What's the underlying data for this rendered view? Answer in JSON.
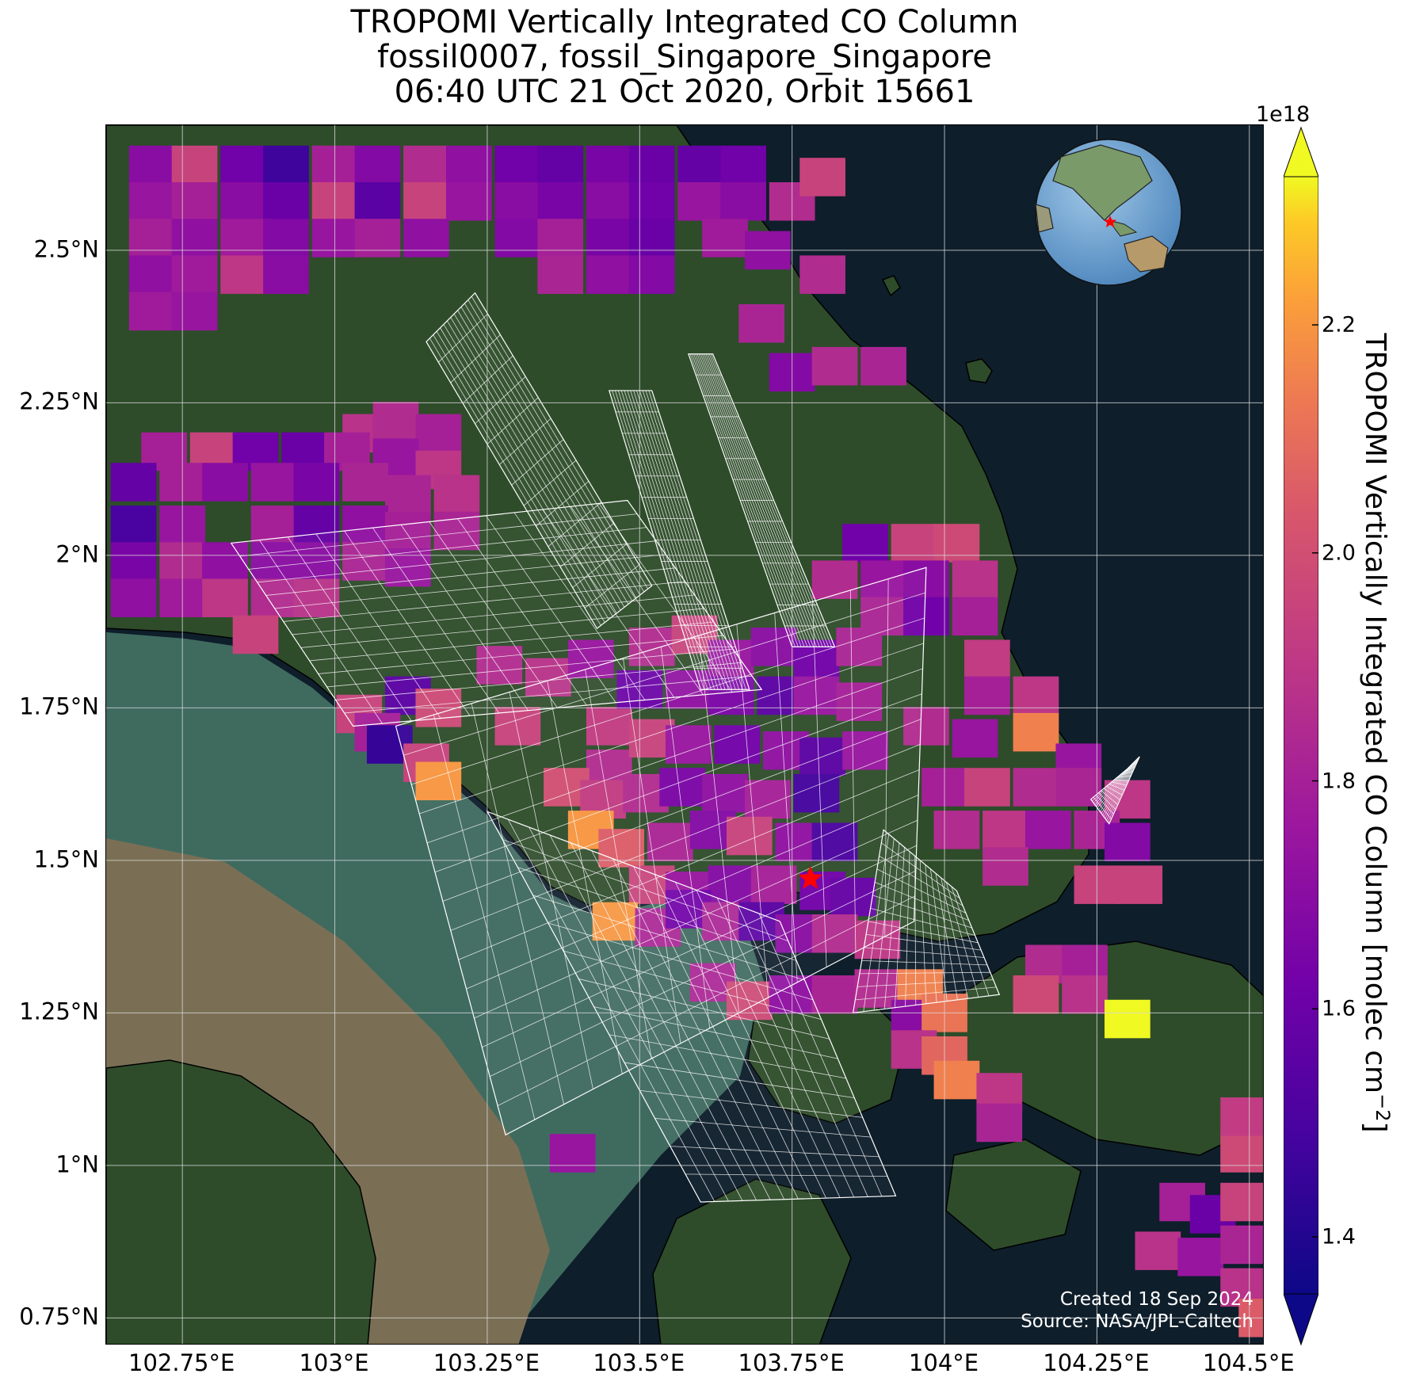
{
  "title": {
    "line1": "TROPOMI Vertically Integrated CO Column",
    "line2": "fossil0007, fossil_Singapore_Singapore",
    "line3": "06:40 UTC 21 Oct 2020, Orbit 15661"
  },
  "map": {
    "lon_range": [
      102.625,
      104.525
    ],
    "lat_range": [
      0.705,
      2.705
    ],
    "x_ticks": [
      "102.75°E",
      "103°E",
      "103.25°E",
      "103.5°E",
      "103.75°E",
      "104°E",
      "104.25°E",
      "104.5°E"
    ],
    "x_tick_values": [
      102.75,
      103.0,
      103.25,
      103.5,
      103.75,
      104.0,
      104.25,
      104.5
    ],
    "y_ticks": [
      "0.75°N",
      "1°N",
      "1.25°N",
      "1.5°N",
      "1.75°N",
      "2°N",
      "2.25°N",
      "2.5°N"
    ],
    "y_tick_values": [
      0.75,
      1.0,
      1.25,
      1.5,
      1.75,
      2.0,
      2.25,
      2.5
    ],
    "grid": true,
    "basemap": "satellite imagery",
    "target_marker": {
      "lon": 103.78,
      "lat": 1.47,
      "symbol": "red star"
    },
    "inset_globe": {
      "position": "top-right",
      "marker": "red star"
    }
  },
  "colorbar": {
    "label": "TROPOMI Vertically Integrated CO Column [molec cm",
    "label_sup": "−2",
    "label_close": "]",
    "exponent": "1e18",
    "range": [
      1.35,
      2.33
    ],
    "ticks": [
      "1.4",
      "1.6",
      "1.8",
      "2.0",
      "2.2"
    ],
    "tick_values": [
      1.4,
      1.6,
      1.8,
      2.0,
      2.2
    ],
    "colormap": "plasma",
    "extend": "both"
  },
  "footer": {
    "created": "Created 18 Sep 2024",
    "source": "Source: NASA/JPL-Caltech"
  },
  "colors": {
    "sea": "#0e1e2b",
    "land": "#2e4c2a",
    "shallow_water": "#3f6b5f",
    "turbid_water": "#7a6f55",
    "grid": "#d8d8d8",
    "marker": "#ff0000"
  },
  "chart_data": {
    "type": "heatmap",
    "value_units": "1e18 molec cm^-2",
    "pixel_size_deg": [
      0.075,
      0.063
    ],
    "pixels": [
      [
        102.7,
        2.64,
        1.7
      ],
      [
        102.77,
        2.64,
        1.95
      ],
      [
        102.85,
        2.64,
        1.62
      ],
      [
        102.92,
        2.64,
        1.47
      ],
      [
        103.0,
        2.64,
        1.8
      ],
      [
        103.07,
        2.64,
        1.68
      ],
      [
        103.15,
        2.64,
        1.85
      ],
      [
        103.22,
        2.64,
        1.72
      ],
      [
        103.3,
        2.64,
        1.62
      ],
      [
        103.37,
        2.64,
        1.58
      ],
      [
        103.45,
        2.64,
        1.65
      ],
      [
        103.52,
        2.64,
        1.6
      ],
      [
        103.6,
        2.64,
        1.58
      ],
      [
        103.67,
        2.64,
        1.62
      ],
      [
        102.7,
        2.58,
        1.75
      ],
      [
        102.77,
        2.58,
        1.8
      ],
      [
        102.85,
        2.58,
        1.7
      ],
      [
        102.92,
        2.58,
        1.6
      ],
      [
        103.0,
        2.58,
        1.95
      ],
      [
        103.07,
        2.58,
        1.55
      ],
      [
        103.15,
        2.58,
        1.95
      ],
      [
        103.22,
        2.58,
        1.75
      ],
      [
        103.3,
        2.58,
        1.7
      ],
      [
        103.37,
        2.58,
        1.65
      ],
      [
        103.45,
        2.58,
        1.7
      ],
      [
        103.52,
        2.58,
        1.62
      ],
      [
        103.6,
        2.58,
        1.75
      ],
      [
        103.67,
        2.58,
        1.7
      ],
      [
        103.75,
        2.58,
        1.85
      ],
      [
        103.8,
        2.62,
        1.95
      ],
      [
        102.7,
        2.52,
        1.8
      ],
      [
        102.77,
        2.52,
        1.72
      ],
      [
        102.85,
        2.52,
        1.78
      ],
      [
        102.92,
        2.52,
        1.68
      ],
      [
        103.0,
        2.52,
        1.75
      ],
      [
        103.07,
        2.52,
        1.8
      ],
      [
        103.15,
        2.52,
        1.72
      ],
      [
        103.3,
        2.52,
        1.68
      ],
      [
        103.37,
        2.52,
        1.8
      ],
      [
        103.45,
        2.52,
        1.65
      ],
      [
        103.52,
        2.52,
        1.6
      ],
      [
        103.64,
        2.52,
        1.78
      ],
      [
        103.71,
        2.5,
        1.72
      ],
      [
        102.7,
        2.46,
        1.72
      ],
      [
        102.77,
        2.46,
        1.78
      ],
      [
        102.85,
        2.46,
        1.9
      ],
      [
        102.92,
        2.46,
        1.7
      ],
      [
        103.37,
        2.46,
        1.82
      ],
      [
        103.45,
        2.46,
        1.72
      ],
      [
        103.52,
        2.46,
        1.68
      ],
      [
        103.8,
        2.46,
        1.85
      ],
      [
        102.7,
        2.4,
        1.78
      ],
      [
        102.77,
        2.4,
        1.75
      ],
      [
        103.7,
        2.38,
        1.82
      ],
      [
        103.75,
        2.3,
        1.68
      ],
      [
        103.82,
        2.31,
        1.85
      ],
      [
        103.9,
        2.31,
        1.82
      ],
      [
        103.05,
        2.2,
        1.88
      ],
      [
        103.1,
        2.22,
        1.85
      ],
      [
        103.17,
        2.2,
        1.8
      ],
      [
        102.72,
        2.17,
        1.8
      ],
      [
        102.8,
        2.17,
        1.95
      ],
      [
        102.87,
        2.17,
        1.62
      ],
      [
        102.95,
        2.17,
        1.6
      ],
      [
        103.02,
        2.17,
        1.8
      ],
      [
        103.1,
        2.16,
        1.75
      ],
      [
        103.17,
        2.14,
        1.9
      ],
      [
        102.67,
        2.12,
        1.58
      ],
      [
        102.75,
        2.12,
        1.8
      ],
      [
        102.82,
        2.12,
        1.7
      ],
      [
        102.9,
        2.12,
        1.75
      ],
      [
        102.97,
        2.12,
        1.65
      ],
      [
        103.05,
        2.12,
        1.82
      ],
      [
        103.12,
        2.1,
        1.82
      ],
      [
        103.2,
        2.1,
        1.88
      ],
      [
        102.67,
        2.05,
        1.5
      ],
      [
        102.75,
        2.05,
        1.75
      ],
      [
        102.9,
        2.05,
        1.8
      ],
      [
        102.97,
        2.05,
        1.58
      ],
      [
        103.05,
        2.05,
        1.72
      ],
      [
        103.12,
        2.04,
        1.8
      ],
      [
        103.2,
        2.04,
        1.82
      ],
      [
        102.67,
        1.99,
        1.65
      ],
      [
        102.75,
        1.99,
        1.85
      ],
      [
        102.82,
        1.99,
        1.72
      ],
      [
        102.9,
        1.99,
        1.7
      ],
      [
        102.97,
        1.99,
        1.7
      ],
      [
        103.05,
        1.99,
        1.82
      ],
      [
        103.12,
        1.98,
        1.75
      ],
      [
        102.67,
        1.93,
        1.72
      ],
      [
        102.75,
        1.93,
        1.78
      ],
      [
        102.82,
        1.93,
        1.9
      ],
      [
        102.9,
        1.93,
        1.85
      ],
      [
        102.97,
        1.93,
        1.88
      ],
      [
        102.87,
        1.87,
        1.95
      ],
      [
        103.87,
        2.02,
        1.62
      ],
      [
        103.95,
        2.02,
        1.95
      ],
      [
        104.02,
        2.02,
        1.98
      ],
      [
        103.82,
        1.96,
        1.85
      ],
      [
        103.9,
        1.96,
        1.75
      ],
      [
        103.97,
        1.96,
        1.7
      ],
      [
        104.05,
        1.96,
        1.88
      ],
      [
        103.9,
        1.9,
        1.82
      ],
      [
        103.97,
        1.9,
        1.62
      ],
      [
        104.05,
        1.9,
        1.8
      ],
      [
        104.07,
        1.83,
        1.92
      ],
      [
        104.07,
        1.77,
        1.8
      ],
      [
        104.15,
        1.77,
        1.9
      ],
      [
        104.15,
        1.71,
        2.15
      ],
      [
        104.22,
        1.66,
        1.75
      ],
      [
        103.97,
        1.72,
        1.85
      ],
      [
        104.05,
        1.7,
        1.75
      ],
      [
        104.0,
        1.62,
        1.8
      ],
      [
        104.07,
        1.62,
        1.95
      ],
      [
        104.15,
        1.62,
        1.85
      ],
      [
        104.22,
        1.62,
        1.82
      ],
      [
        104.3,
        1.6,
        1.9
      ],
      [
        104.02,
        1.55,
        1.85
      ],
      [
        104.1,
        1.55,
        1.9
      ],
      [
        104.17,
        1.55,
        1.75
      ],
      [
        104.25,
        1.55,
        1.82
      ],
      [
        104.3,
        1.53,
        1.68
      ],
      [
        104.1,
        1.49,
        1.85
      ],
      [
        104.25,
        1.46,
        1.95
      ],
      [
        104.32,
        1.46,
        1.95
      ],
      [
        104.17,
        1.33,
        1.85
      ],
      [
        104.23,
        1.33,
        1.8
      ],
      [
        104.15,
        1.28,
        1.98
      ],
      [
        104.23,
        1.28,
        1.88
      ],
      [
        104.3,
        1.24,
        2.38
      ],
      [
        103.12,
        1.77,
        1.55
      ],
      [
        103.17,
        1.75,
        1.98
      ],
      [
        103.04,
        1.74,
        1.95
      ],
      [
        103.07,
        1.71,
        1.8
      ],
      [
        103.09,
        1.69,
        1.45
      ],
      [
        103.15,
        1.66,
        1.95
      ],
      [
        103.17,
        1.63,
        2.2
      ],
      [
        103.27,
        1.82,
        1.85
      ],
      [
        103.35,
        1.8,
        1.88
      ],
      [
        103.42,
        1.83,
        1.75
      ],
      [
        103.3,
        1.72,
        1.95
      ],
      [
        103.45,
        1.72,
        1.92
      ],
      [
        103.52,
        1.85,
        1.85
      ],
      [
        103.59,
        1.87,
        1.95
      ],
      [
        103.65,
        1.83,
        1.75
      ],
      [
        103.72,
        1.85,
        1.7
      ],
      [
        103.79,
        1.83,
        1.62
      ],
      [
        103.86,
        1.85,
        1.82
      ],
      [
        103.5,
        1.78,
        1.6
      ],
      [
        103.58,
        1.78,
        1.72
      ],
      [
        103.65,
        1.77,
        1.65
      ],
      [
        103.73,
        1.77,
        1.55
      ],
      [
        103.79,
        1.77,
        1.75
      ],
      [
        103.86,
        1.76,
        1.8
      ],
      [
        103.45,
        1.65,
        1.85
      ],
      [
        103.52,
        1.7,
        1.95
      ],
      [
        103.58,
        1.69,
        1.75
      ],
      [
        103.66,
        1.69,
        1.62
      ],
      [
        103.74,
        1.68,
        1.72
      ],
      [
        103.8,
        1.67,
        1.55
      ],
      [
        103.87,
        1.68,
        1.75
      ],
      [
        103.38,
        1.62,
        2.0
      ],
      [
        103.44,
        1.6,
        1.92
      ],
      [
        103.51,
        1.61,
        1.85
      ],
      [
        103.57,
        1.62,
        1.65
      ],
      [
        103.64,
        1.61,
        1.72
      ],
      [
        103.71,
        1.6,
        1.8
      ],
      [
        103.79,
        1.61,
        1.48
      ],
      [
        103.42,
        1.55,
        2.2
      ],
      [
        103.47,
        1.52,
        2.05
      ],
      [
        103.55,
        1.53,
        1.82
      ],
      [
        103.62,
        1.55,
        1.68
      ],
      [
        103.68,
        1.54,
        1.95
      ],
      [
        103.76,
        1.53,
        1.72
      ],
      [
        103.82,
        1.53,
        1.5
      ],
      [
        103.52,
        1.46,
        1.95
      ],
      [
        103.58,
        1.45,
        1.75
      ],
      [
        103.65,
        1.46,
        1.68
      ],
      [
        103.72,
        1.46,
        1.8
      ],
      [
        103.8,
        1.45,
        1.62
      ],
      [
        103.85,
        1.44,
        1.58
      ],
      [
        103.46,
        1.4,
        2.2
      ],
      [
        103.53,
        1.39,
        1.82
      ],
      [
        103.58,
        1.42,
        1.62
      ],
      [
        103.64,
        1.4,
        1.82
      ],
      [
        103.7,
        1.4,
        1.55
      ],
      [
        103.76,
        1.38,
        1.7
      ],
      [
        103.82,
        1.38,
        1.85
      ],
      [
        103.89,
        1.37,
        1.9
      ],
      [
        103.62,
        1.3,
        1.82
      ],
      [
        103.68,
        1.27,
        1.98
      ],
      [
        103.75,
        1.28,
        1.72
      ],
      [
        103.82,
        1.28,
        1.82
      ],
      [
        103.89,
        1.29,
        1.85
      ],
      [
        103.96,
        1.29,
        2.15
      ],
      [
        103.95,
        1.24,
        1.7
      ],
      [
        104.0,
        1.25,
        2.12
      ],
      [
        103.95,
        1.19,
        1.88
      ],
      [
        104.0,
        1.18,
        2.08
      ],
      [
        104.02,
        1.14,
        2.15
      ],
      [
        104.09,
        1.12,
        1.9
      ],
      [
        104.09,
        1.07,
        1.82
      ],
      [
        103.39,
        1.02,
        1.75
      ],
      [
        104.39,
        0.94,
        1.8
      ],
      [
        104.44,
        0.92,
        1.6
      ],
      [
        104.49,
        0.94,
        1.95
      ],
      [
        104.49,
        1.02,
        1.98
      ],
      [
        104.49,
        1.08,
        1.92
      ],
      [
        104.35,
        0.86,
        1.88
      ],
      [
        104.42,
        0.85,
        1.75
      ],
      [
        104.49,
        0.87,
        1.82
      ],
      [
        104.49,
        0.8,
        1.88
      ],
      [
        104.52,
        0.75,
        2.05
      ]
    ],
    "outline_swaths": [
      {
        "corners": [
          [
            103.15,
            2.35
          ],
          [
            103.23,
            2.43
          ],
          [
            103.52,
            1.95
          ],
          [
            103.43,
            1.88
          ]
        ]
      },
      {
        "corners": [
          [
            103.45,
            2.27
          ],
          [
            103.52,
            2.27
          ],
          [
            103.68,
            1.78
          ],
          [
            103.6,
            1.78
          ]
        ]
      },
      {
        "corners": [
          [
            103.58,
            2.33
          ],
          [
            103.62,
            2.33
          ],
          [
            103.82,
            1.85
          ],
          [
            103.75,
            1.85
          ]
        ]
      },
      {
        "corners": [
          [
            102.83,
            2.02
          ],
          [
            103.48,
            2.09
          ],
          [
            103.7,
            1.78
          ],
          [
            103.03,
            1.72
          ]
        ]
      },
      {
        "corners": [
          [
            103.1,
            1.72
          ],
          [
            103.97,
            1.98
          ],
          [
            103.95,
            1.4
          ],
          [
            103.28,
            1.05
          ]
        ]
      },
      {
        "corners": [
          [
            103.25,
            1.58
          ],
          [
            103.73,
            1.4
          ],
          [
            103.92,
            0.95
          ],
          [
            103.6,
            0.94
          ]
        ]
      },
      {
        "corners": [
          [
            103.9,
            1.55
          ],
          [
            104.02,
            1.45
          ],
          [
            104.09,
            1.28
          ],
          [
            103.85,
            1.25
          ]
        ]
      },
      {
        "corners": [
          [
            104.24,
            1.6
          ],
          [
            104.3,
            1.65
          ],
          [
            104.32,
            1.67
          ],
          [
            104.27,
            1.56
          ]
        ]
      }
    ]
  }
}
